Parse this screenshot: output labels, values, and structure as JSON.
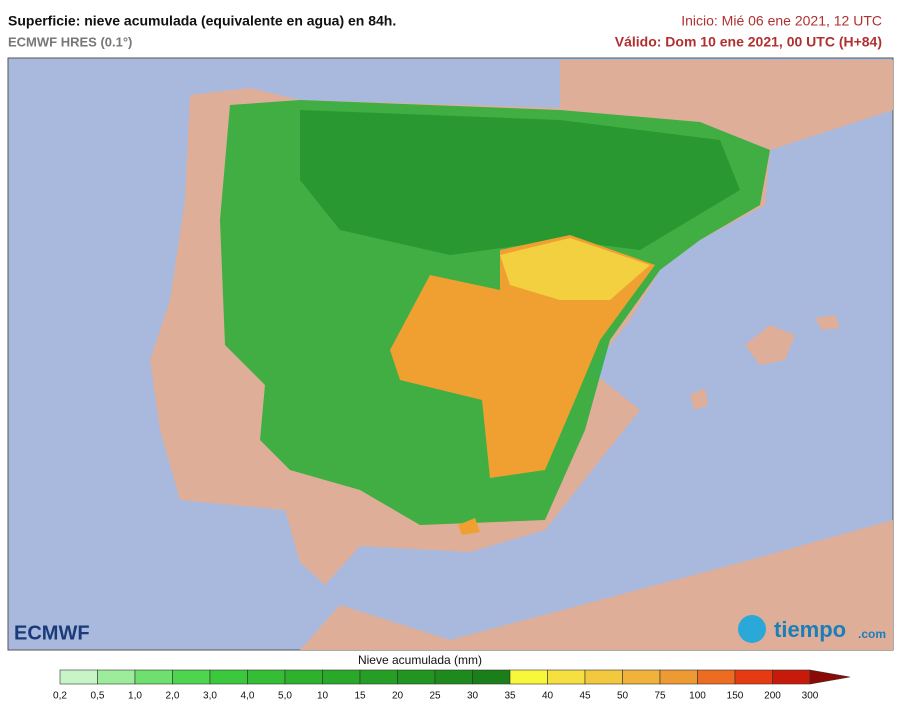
{
  "header": {
    "title": "Superficie: nieve acumulada (equivalente en agua) en 84h.",
    "model": "ECMWF HRES (0.1°)",
    "init": "Inicio: Mié 06 ene 2021, 12 UTC",
    "valid": "Válido: Dom 10 ene 2021, 00 UTC (H+84)"
  },
  "logos": {
    "left": "ECMWF",
    "right": "tiempo",
    "right_suffix": ".com"
  },
  "legend": {
    "title": "Nieve acumulada (mm)",
    "labels": [
      "0,2",
      "0,5",
      "1,0",
      "2,0",
      "3,0",
      "4,0",
      "5,0",
      "10",
      "15",
      "20",
      "25",
      "30",
      "35",
      "40",
      "45",
      "50",
      "75",
      "100",
      "150",
      "200",
      "300"
    ],
    "colors": [
      "#c8f5c8",
      "#9cec9c",
      "#6fe06f",
      "#4fd44f",
      "#3cc83c",
      "#35bd35",
      "#2eb22e",
      "#2aa82a",
      "#269e26",
      "#229422",
      "#1e8a1e",
      "#1a7f1a",
      "#f7f73c",
      "#f5e040",
      "#f2c93e",
      "#f0b23a",
      "#ee9a33",
      "#ec6d22",
      "#e63a12",
      "#c81a0a",
      "#8c0a05"
    ]
  }
}
